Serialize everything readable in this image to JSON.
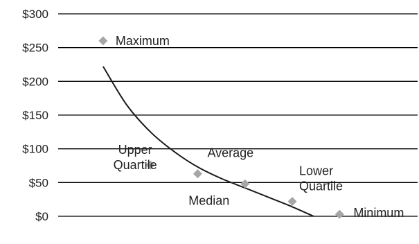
{
  "chart_data": {
    "type": "scatter",
    "title": "",
    "xlabel": "",
    "ylabel": "",
    "ylim": [
      0,
      300
    ],
    "yticks": [
      0,
      50,
      100,
      150,
      200,
      250,
      300
    ],
    "ytick_labels": [
      "$0",
      "$50",
      "$100",
      "$150",
      "$200",
      "$250",
      "$300"
    ],
    "grid": true,
    "legend": "none",
    "marker_color": "#a6a6a6",
    "curve_color": "#1a1a1a",
    "points": [
      {
        "x": 1,
        "y": 260,
        "label": [
          "Maximum"
        ]
      },
      {
        "x": 2,
        "y": 76,
        "label": [
          "Upper",
          "Quartile"
        ]
      },
      {
        "x": 3,
        "y": 63,
        "label": [
          "Average"
        ]
      },
      {
        "x": 4,
        "y": 48,
        "label": [
          "Median"
        ]
      },
      {
        "x": 5,
        "y": 22,
        "label": [
          "Lower",
          "Quartile"
        ]
      },
      {
        "x": 6,
        "y": 3,
        "label": [
          "Minimum"
        ]
      }
    ],
    "trend_curve": [
      {
        "x": 1.0,
        "y": 222
      },
      {
        "x": 1.5,
        "y": 165
      },
      {
        "x": 2.0,
        "y": 125
      },
      {
        "x": 2.5,
        "y": 96
      },
      {
        "x": 3.0,
        "y": 73
      },
      {
        "x": 3.5,
        "y": 56
      },
      {
        "x": 4.0,
        "y": 42
      },
      {
        "x": 4.5,
        "y": 28
      },
      {
        "x": 5.0,
        "y": 14
      },
      {
        "x": 5.45,
        "y": 0
      }
    ]
  }
}
